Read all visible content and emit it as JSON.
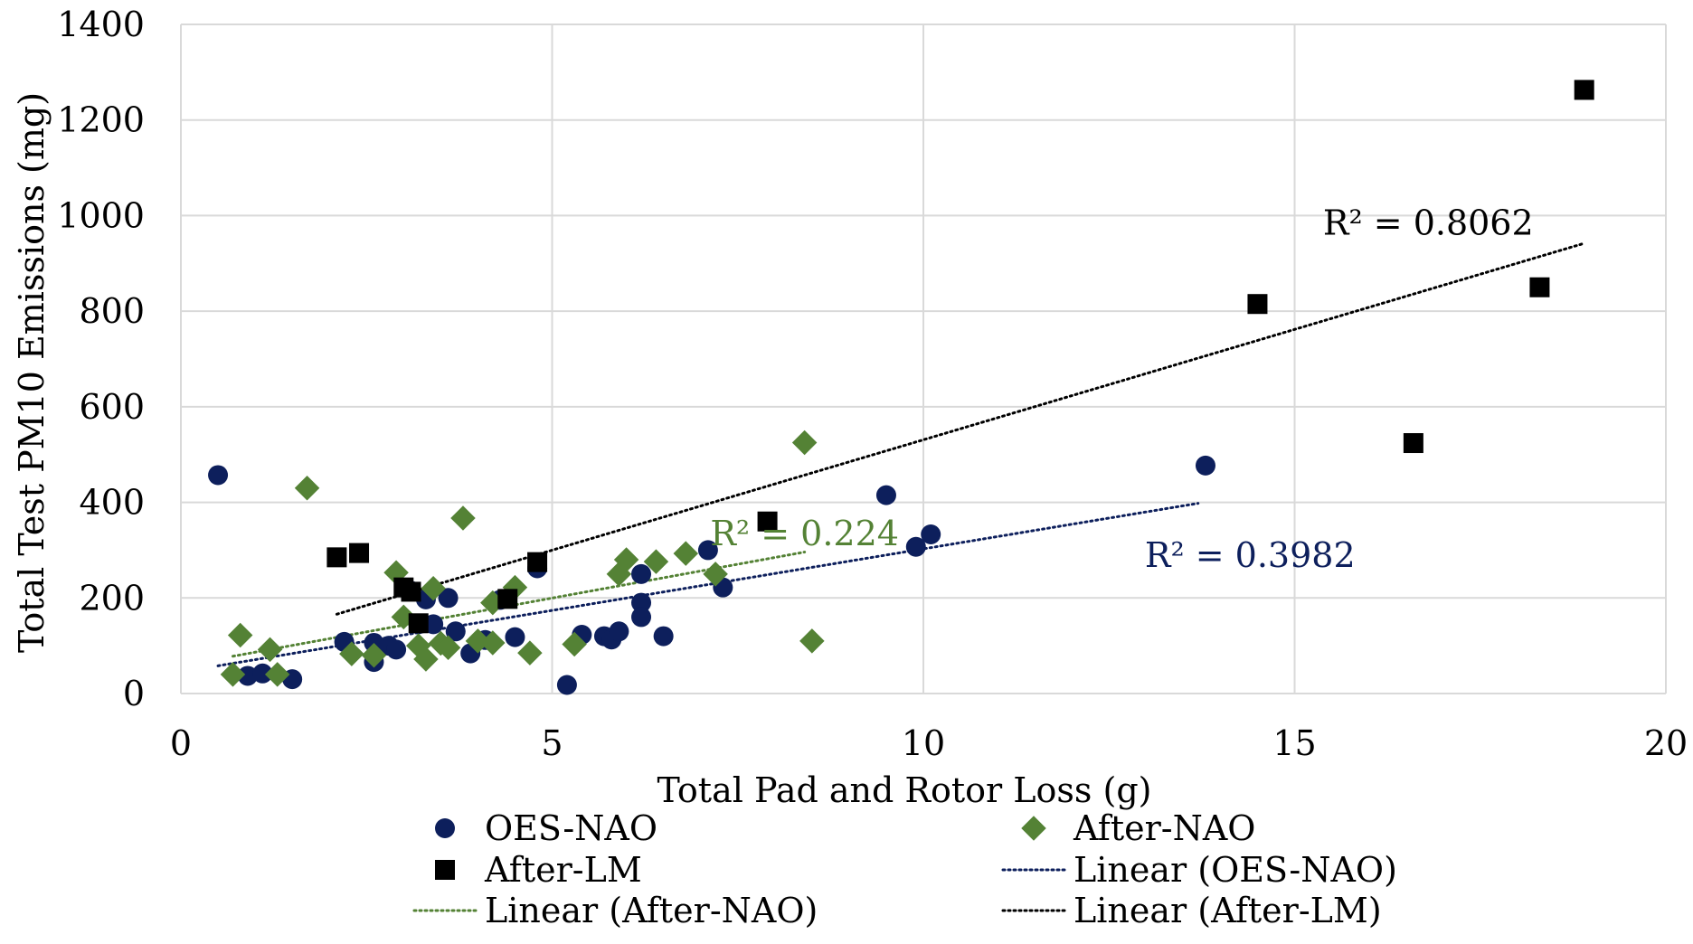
{
  "chart_data": {
    "type": "scatter",
    "title": "",
    "xlabel": "Total Pad and Rotor Loss (g)",
    "ylabel": "Total Test PM10 Emissions (mg)",
    "xlim": [
      0,
      20
    ],
    "ylim": [
      0,
      1400
    ],
    "xticks": [
      0,
      5,
      10,
      15,
      20
    ],
    "yticks": [
      0,
      200,
      400,
      600,
      800,
      1000,
      1200,
      1400
    ],
    "grid": true,
    "legend_position": "bottom",
    "series": [
      {
        "name": "OES-NAO",
        "marker": "circle",
        "color": "#0d1f5c",
        "points": [
          [
            0.5,
            457
          ],
          [
            0.9,
            37
          ],
          [
            1.1,
            42
          ],
          [
            1.5,
            30
          ],
          [
            2.2,
            108
          ],
          [
            2.6,
            66
          ],
          [
            2.6,
            106
          ],
          [
            2.8,
            100
          ],
          [
            2.9,
            92
          ],
          [
            3.1,
            215
          ],
          [
            3.2,
            145
          ],
          [
            3.3,
            197
          ],
          [
            3.4,
            145
          ],
          [
            3.6,
            200
          ],
          [
            3.7,
            130
          ],
          [
            3.9,
            84
          ],
          [
            4.1,
            112
          ],
          [
            4.3,
            196
          ],
          [
            4.5,
            118
          ],
          [
            4.8,
            262
          ],
          [
            5.2,
            18
          ],
          [
            5.4,
            123
          ],
          [
            5.7,
            120
          ],
          [
            5.8,
            113
          ],
          [
            5.9,
            130
          ],
          [
            6.2,
            250
          ],
          [
            6.2,
            190
          ],
          [
            6.2,
            160
          ],
          [
            6.5,
            120
          ],
          [
            7.1,
            300
          ],
          [
            7.3,
            222
          ],
          [
            9.5,
            415
          ],
          [
            9.9,
            307
          ],
          [
            10.1,
            333
          ],
          [
            13.8,
            477
          ]
        ]
      },
      {
        "name": "After-NAO",
        "marker": "diamond",
        "color": "#548235",
        "points": [
          [
            0.7,
            40
          ],
          [
            0.8,
            122
          ],
          [
            1.2,
            92
          ],
          [
            1.3,
            40
          ],
          [
            1.7,
            430
          ],
          [
            2.3,
            83
          ],
          [
            2.6,
            80
          ],
          [
            2.9,
            253
          ],
          [
            3.0,
            160
          ],
          [
            3.2,
            100
          ],
          [
            3.3,
            72
          ],
          [
            3.4,
            220
          ],
          [
            3.5,
            105
          ],
          [
            3.6,
            96
          ],
          [
            3.8,
            367
          ],
          [
            4.0,
            110
          ],
          [
            4.2,
            106
          ],
          [
            4.2,
            190
          ],
          [
            4.5,
            222
          ],
          [
            4.7,
            85
          ],
          [
            5.3,
            103
          ],
          [
            5.9,
            250
          ],
          [
            6.0,
            280
          ],
          [
            6.4,
            276
          ],
          [
            6.8,
            293
          ],
          [
            7.2,
            250
          ],
          [
            8.4,
            525
          ],
          [
            8.5,
            110
          ]
        ]
      },
      {
        "name": "After-LM",
        "marker": "square",
        "color": "#000000",
        "points": [
          [
            2.1,
            285
          ],
          [
            2.4,
            294
          ],
          [
            3.0,
            222
          ],
          [
            3.1,
            213
          ],
          [
            3.2,
            147
          ],
          [
            4.4,
            198
          ],
          [
            4.8,
            275
          ],
          [
            7.9,
            360
          ],
          [
            14.5,
            815
          ],
          [
            16.6,
            524
          ],
          [
            18.3,
            850
          ],
          [
            18.9,
            1263
          ]
        ]
      }
    ],
    "trendlines": [
      {
        "name": "Linear (OES-NAO)",
        "for_series": "OES-NAO",
        "color": "#0d1f5c",
        "points": [
          [
            0.5,
            58
          ],
          [
            13.7,
            398
          ]
        ],
        "r2_label": "R² = 0.3982"
      },
      {
        "name": "Linear (After-NAO)",
        "for_series": "After-NAO",
        "color": "#548235",
        "points": [
          [
            0.7,
            78
          ],
          [
            8.4,
            296
          ]
        ],
        "r2_label": "R² = 0.224"
      },
      {
        "name": "Linear (After-LM)",
        "for_series": "After-LM",
        "color": "#000000",
        "points": [
          [
            2.1,
            166
          ],
          [
            18.9,
            942
          ]
        ],
        "r2_label": "R² = 0.8062"
      }
    ],
    "r2_annotation_positions": {
      "Linear (After-LM)": [
        16.8,
        960
      ],
      "Linear (After-NAO)": [
        8.4,
        310
      ],
      "Linear (OES-NAO)": [
        14.4,
        265
      ]
    },
    "legend": [
      {
        "label": "OES-NAO",
        "kind": "marker",
        "series": "OES-NAO"
      },
      {
        "label": "After-NAO",
        "kind": "marker",
        "series": "After-NAO"
      },
      {
        "label": "After-LM",
        "kind": "marker",
        "series": "After-LM"
      },
      {
        "label": "Linear (OES-NAO)",
        "kind": "line",
        "series": "Linear (OES-NAO)"
      },
      {
        "label": "Linear (After-NAO)",
        "kind": "line",
        "series": "Linear (After-NAO)"
      },
      {
        "label": "Linear (After-LM)",
        "kind": "line",
        "series": "Linear (After-LM)"
      }
    ]
  }
}
